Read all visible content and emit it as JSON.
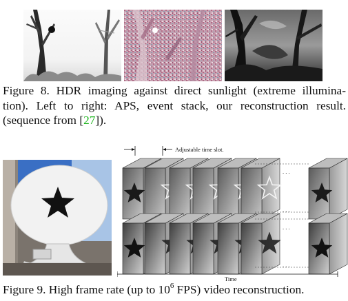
{
  "figure8": {
    "caption_lines": [
      "Figure 8. HDR imaging against direct sunlight (extreme illumina-",
      "tion). Left to right: APS, event stack, our reconstruction result."
    ],
    "caption_line3_prefix": "(sequence from [",
    "citation": "27",
    "caption_line3_suffix": "])."
  },
  "figure9": {
    "caption_prefix": "Figure 9. High frame rate (up to 10",
    "caption_superscript": "6",
    "caption_suffix": " FPS) video reconstruction.",
    "diagram": {
      "time_slot_label": "Adjustable time slot.",
      "time_label": "Time",
      "ellipsis": ". . ."
    }
  }
}
